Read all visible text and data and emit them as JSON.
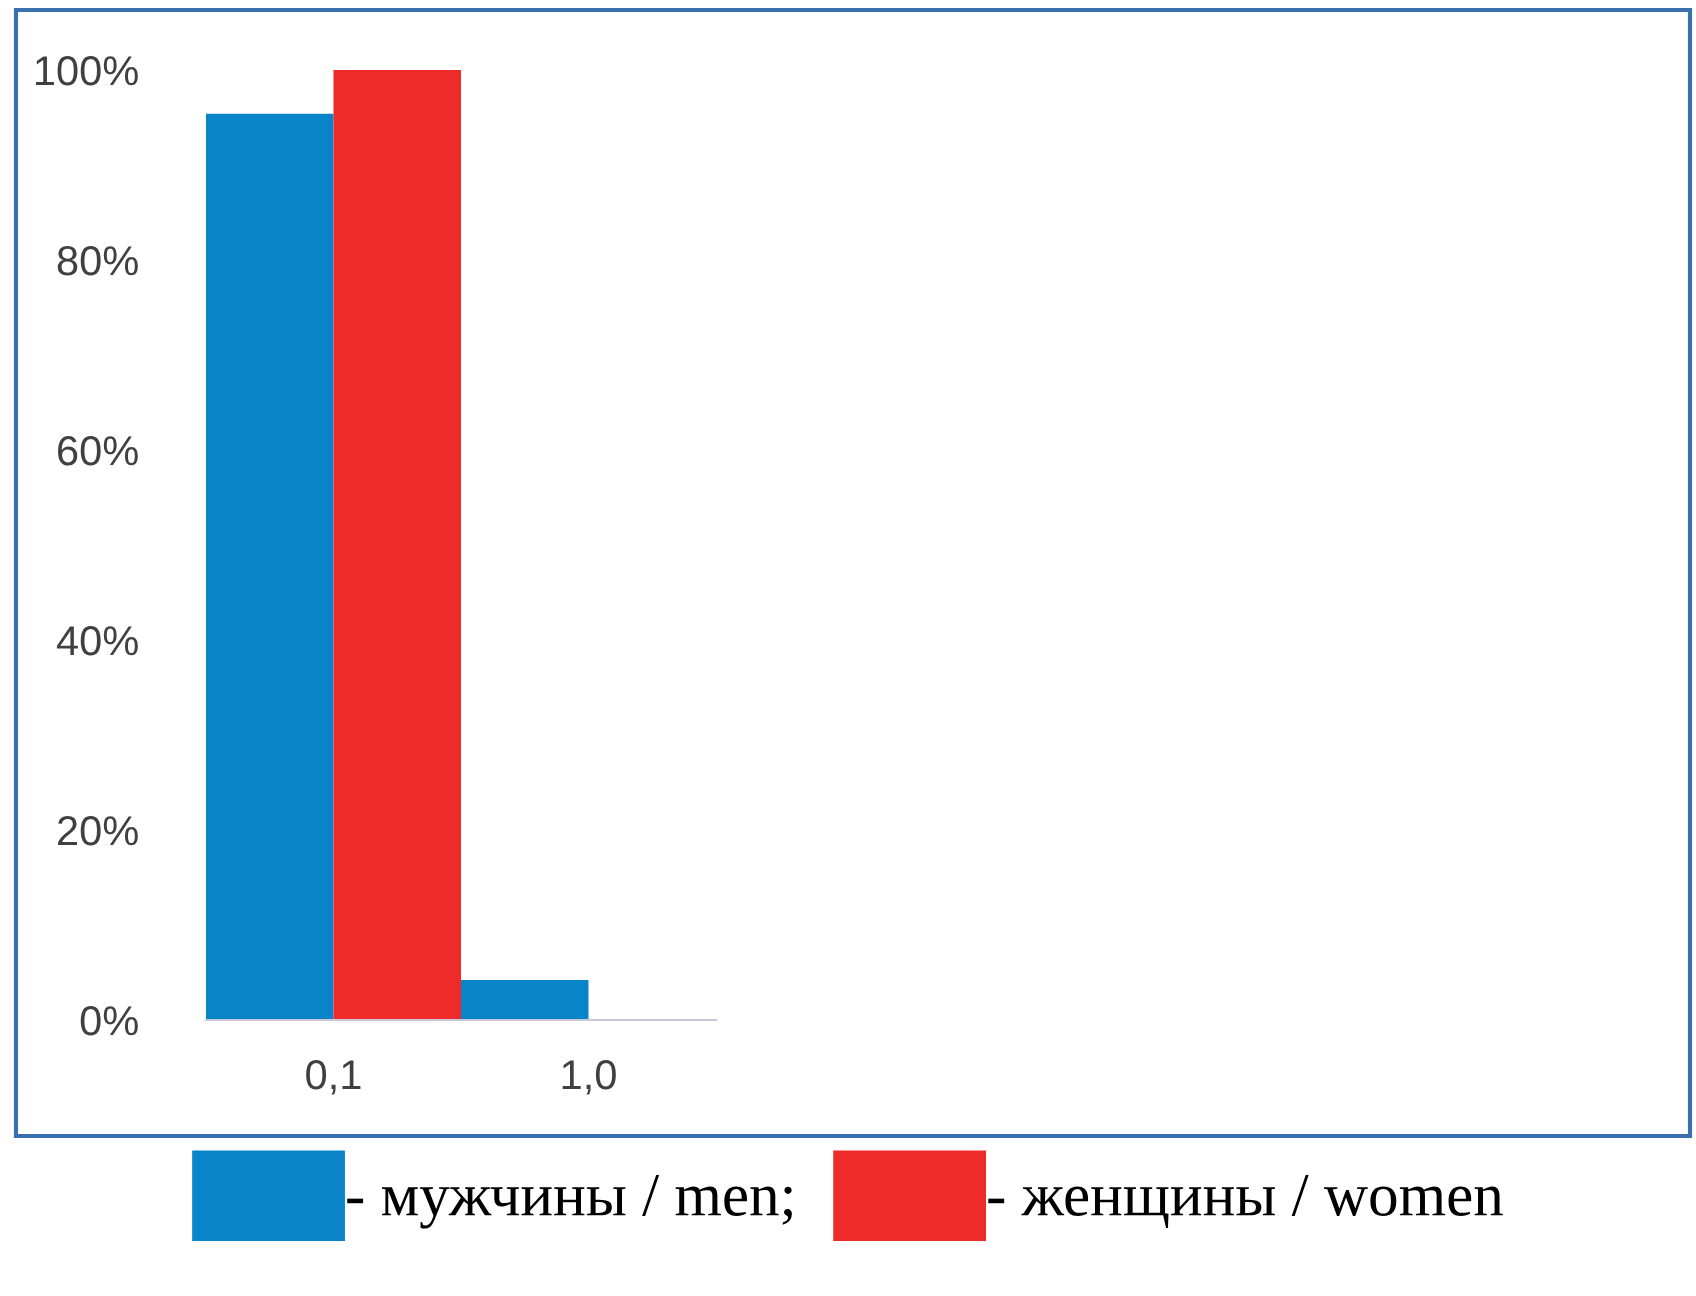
{
  "chart_data": {
    "type": "bar",
    "categories": [
      "0,1",
      "1,0"
    ],
    "series": [
      {
        "name": "- мужчины / men;",
        "color": "#0a84c8",
        "values": [
          95.4,
          4.2
        ]
      },
      {
        "name": "- женщины / women",
        "color": "#ee2a2a",
        "values": [
          100,
          0
        ]
      }
    ],
    "ylim": [
      0,
      100
    ],
    "yticks": [
      {
        "value": 0,
        "label": "0%"
      },
      {
        "value": 20,
        "label": "20%"
      },
      {
        "value": 40,
        "label": "40%"
      },
      {
        "value": 60,
        "label": "60%"
      },
      {
        "value": 80,
        "label": "80%"
      },
      {
        "value": 100,
        "label": "100%"
      }
    ],
    "grid": false,
    "legend": "bottom"
  }
}
